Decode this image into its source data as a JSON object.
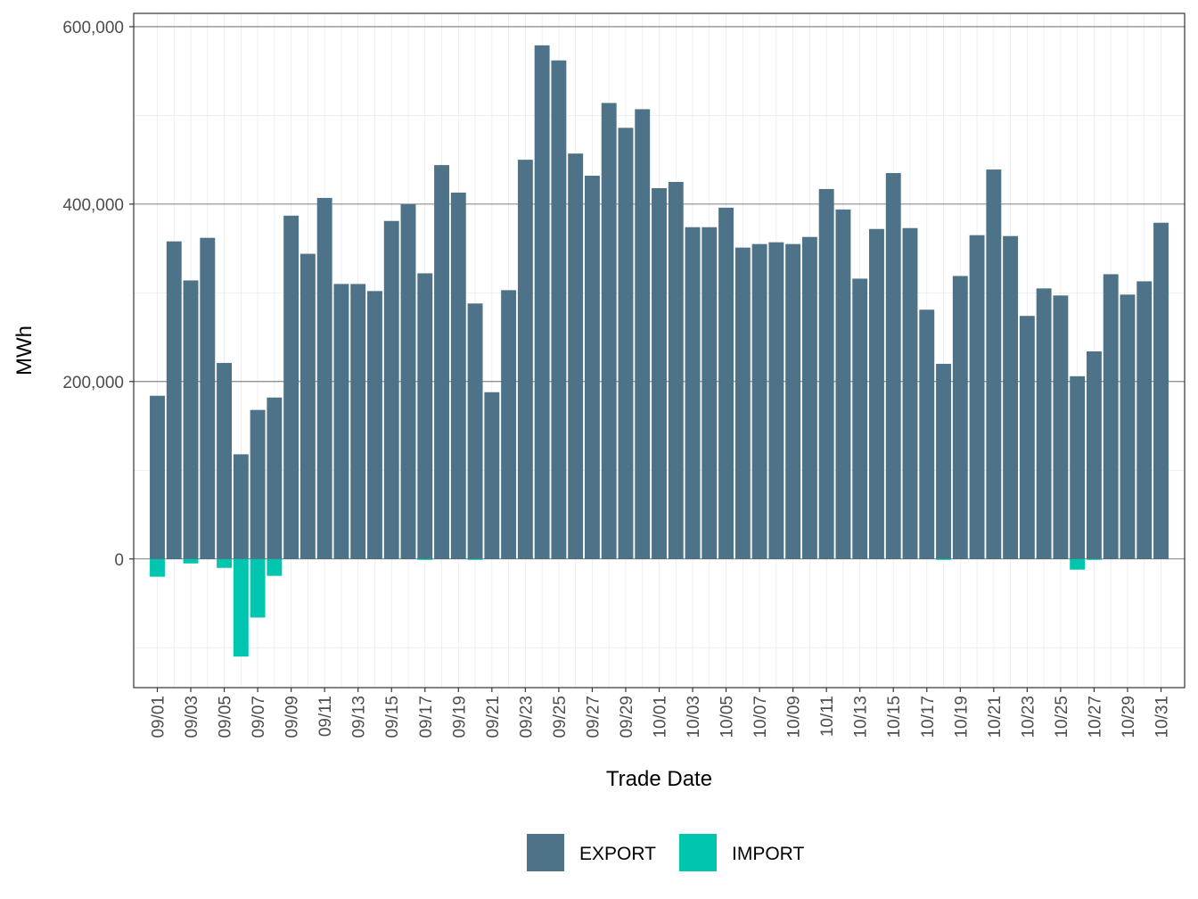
{
  "chart_data": {
    "type": "bar",
    "stacked": true,
    "xlabel": "Trade Date",
    "ylabel": "MWh",
    "ylim": [
      -145000,
      615000
    ],
    "y_ticks": [
      0,
      200000,
      400000,
      600000
    ],
    "y_tick_labels": [
      "0",
      "200,000",
      "400,000",
      "600,000"
    ],
    "categories": [
      "09/01",
      "09/02",
      "09/03",
      "09/04",
      "09/05",
      "09/06",
      "09/07",
      "09/08",
      "09/09",
      "09/10",
      "09/11",
      "09/12",
      "09/13",
      "09/14",
      "09/15",
      "09/16",
      "09/17",
      "09/18",
      "09/19",
      "09/20",
      "09/21",
      "09/22",
      "09/23",
      "09/24",
      "09/25",
      "09/26",
      "09/27",
      "09/28",
      "09/29",
      "09/30",
      "10/01",
      "10/02",
      "10/03",
      "10/04",
      "10/05",
      "10/06",
      "10/07",
      "10/08",
      "10/09",
      "10/10",
      "10/11",
      "10/12",
      "10/13",
      "10/14",
      "10/15",
      "10/16",
      "10/17",
      "10/18",
      "10/19",
      "10/20",
      "10/21",
      "10/22",
      "10/23",
      "10/24",
      "10/25",
      "10/26",
      "10/27",
      "10/28",
      "10/29",
      "10/30",
      "10/31"
    ],
    "x_tick_labels": [
      "09/01",
      "09/03",
      "09/05",
      "09/07",
      "09/09",
      "09/11",
      "09/13",
      "09/15",
      "09/17",
      "09/19",
      "09/21",
      "09/23",
      "09/25",
      "09/27",
      "09/29",
      "10/01",
      "10/03",
      "10/05",
      "10/07",
      "10/09",
      "10/11",
      "10/13",
      "10/15",
      "10/17",
      "10/19",
      "10/21",
      "10/23",
      "10/25",
      "10/27",
      "10/29",
      "10/31"
    ],
    "series": [
      {
        "name": "EXPORT",
        "color": "#4e7287",
        "values": [
          184000,
          358000,
          314000,
          362000,
          221000,
          118000,
          168000,
          182000,
          387000,
          344000,
          407000,
          310000,
          310000,
          302000,
          381000,
          400000,
          322000,
          444000,
          413000,
          288000,
          188000,
          303000,
          450000,
          579000,
          562000,
          457000,
          432000,
          514000,
          486000,
          507000,
          418000,
          425000,
          374000,
          374000,
          396000,
          351000,
          355000,
          357000,
          355000,
          363000,
          417000,
          394000,
          316000,
          372000,
          435000,
          373000,
          281000,
          220000,
          319000,
          365000,
          439000,
          364000,
          274000,
          305000,
          297000,
          206000,
          234000,
          321000,
          298000,
          313000,
          379000
        ]
      },
      {
        "name": "IMPORT",
        "color": "#00c6b0",
        "values": [
          -20000,
          0,
          -5000,
          0,
          -10000,
          -110000,
          -66000,
          -19000,
          0,
          0,
          0,
          0,
          0,
          0,
          0,
          0,
          -1000,
          0,
          0,
          -1000,
          0,
          0,
          0,
          0,
          0,
          0,
          0,
          0,
          0,
          0,
          0,
          0,
          0,
          0,
          0,
          0,
          0,
          0,
          0,
          0,
          0,
          0,
          0,
          0,
          0,
          0,
          0,
          -1000,
          0,
          0,
          0,
          0,
          0,
          0,
          0,
          -12000,
          -1000,
          0,
          0,
          0,
          0
        ]
      }
    ],
    "grid": true,
    "legend": "bottom"
  }
}
